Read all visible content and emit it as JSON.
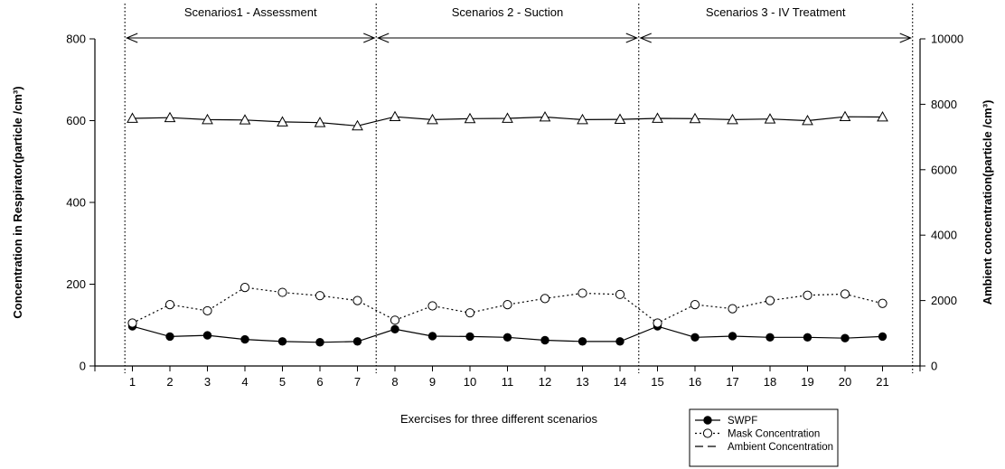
{
  "chart_data": {
    "type": "line",
    "xlabel": "Exercises for three different scenarios",
    "ylabel": "Concentration in Respirator(particle /cm³)",
    "ylabel_right": "Ambient concentration(particle /cm³)",
    "ylim": [
      0,
      800
    ],
    "yticks": [
      "0",
      "200",
      "400",
      "600",
      "800"
    ],
    "ylim_right": [
      0,
      10000
    ],
    "yticks_right": [
      "0",
      "2000",
      "4000",
      "6000",
      "8000",
      "10000"
    ],
    "xlim": [
      0,
      22
    ],
    "x": [
      1,
      2,
      3,
      4,
      5,
      6,
      7,
      8,
      9,
      10,
      11,
      12,
      13,
      14,
      15,
      16,
      17,
      18,
      19,
      20,
      21
    ],
    "xtick_labels": [
      "1",
      "2",
      "3",
      "4",
      "5",
      "6",
      "7",
      "8",
      "9",
      "10",
      "11",
      "12",
      "13",
      "14",
      "15",
      "16",
      "17",
      "18",
      "19",
      "20",
      "21"
    ],
    "scenarios": [
      {
        "label": "Scenarios1 - Assessment",
        "start": 0.8,
        "end": 7.5
      },
      {
        "label": "Scenarios 2 - Suction",
        "start": 7.5,
        "end": 14.5
      },
      {
        "label": "Scenarios 3 - IV Treatment",
        "start": 14.5,
        "end": 21.8
      }
    ],
    "grid": false,
    "legend_position": "bottom-right",
    "series": [
      {
        "name": "SWPF",
        "marker": "filled-circle",
        "line": "solid",
        "axis": "left",
        "values": [
          97,
          72,
          75,
          65,
          60,
          58,
          60,
          90,
          73,
          72,
          70,
          63,
          60,
          60,
          97,
          70,
          73,
          70,
          70,
          68,
          72
        ]
      },
      {
        "name": "Mask Concentration",
        "marker": "open-circle",
        "line": "dotted",
        "axis": "left",
        "values": [
          105,
          150,
          135,
          192,
          180,
          172,
          160,
          112,
          147,
          130,
          150,
          165,
          178,
          175,
          105,
          150,
          140,
          160,
          173,
          176,
          153
        ]
      },
      {
        "name": "Ambient Concentration",
        "marker": "open-triangle",
        "line": "solid",
        "legend_line": "dashed",
        "axis": "right",
        "values": [
          7570,
          7590,
          7530,
          7520,
          7460,
          7440,
          7340,
          7620,
          7530,
          7560,
          7570,
          7610,
          7530,
          7540,
          7570,
          7560,
          7530,
          7550,
          7500,
          7620,
          7610
        ]
      }
    ]
  }
}
